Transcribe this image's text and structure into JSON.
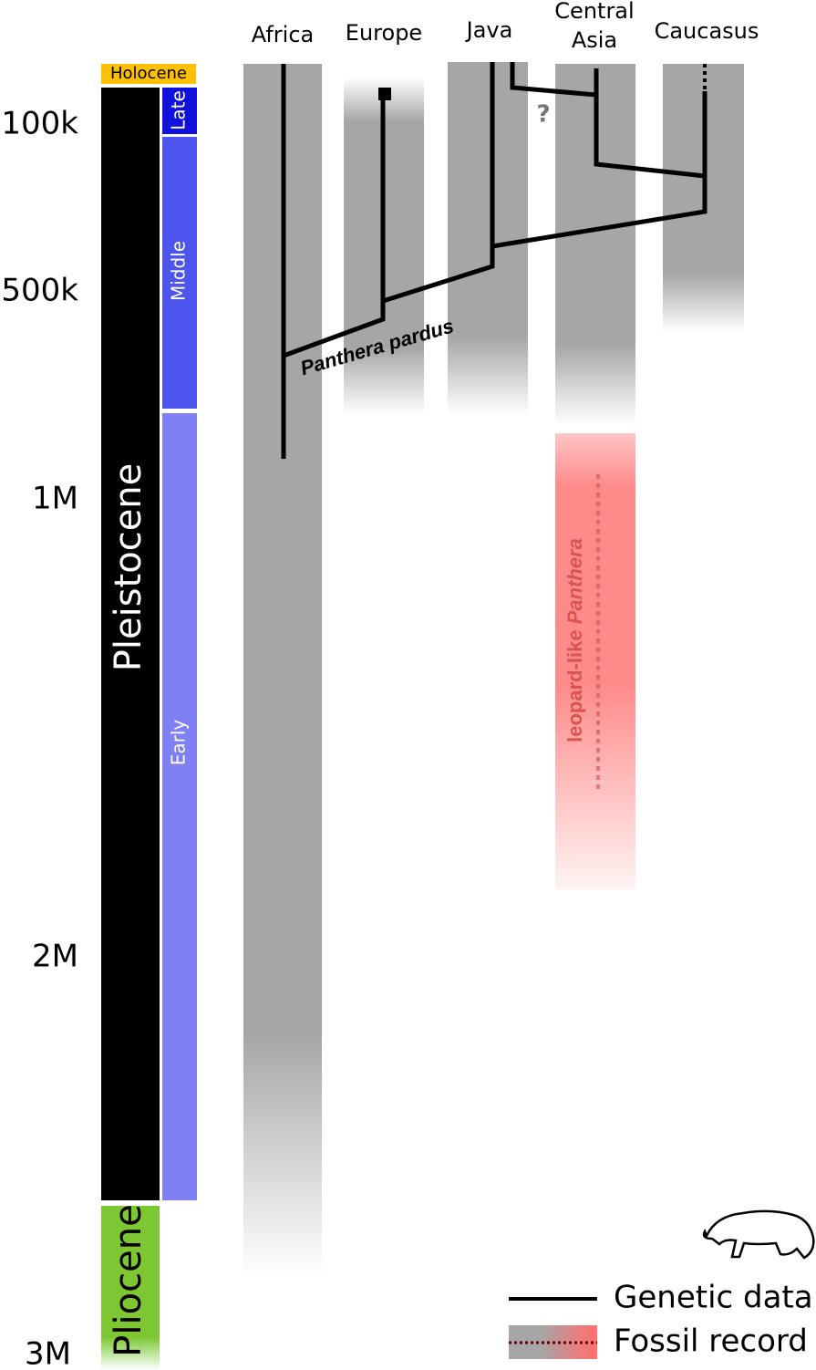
{
  "header": {
    "regions": [
      {
        "label": [
          "Africa"
        ]
      },
      {
        "label": [
          "Europe"
        ]
      },
      {
        "label": [
          "Java"
        ]
      },
      {
        "label": [
          "Central",
          "Asia"
        ]
      },
      {
        "label": [
          "Caucasus"
        ]
      }
    ]
  },
  "timescale": {
    "epochs": [
      "Holocene",
      "Pleistocene",
      "Pliocene"
    ],
    "stages": [
      "Late",
      "Middle",
      "Early"
    ],
    "ages": [
      "100k",
      "500k",
      "1M",
      "2M",
      "3M"
    ]
  },
  "tree": {
    "species": "Panthera pardus",
    "uncertain": "?",
    "fossil_label": [
      "leopard-like",
      "Panthera"
    ]
  },
  "legend": {
    "items": [
      "Genetic data",
      "Fossil record"
    ]
  }
}
